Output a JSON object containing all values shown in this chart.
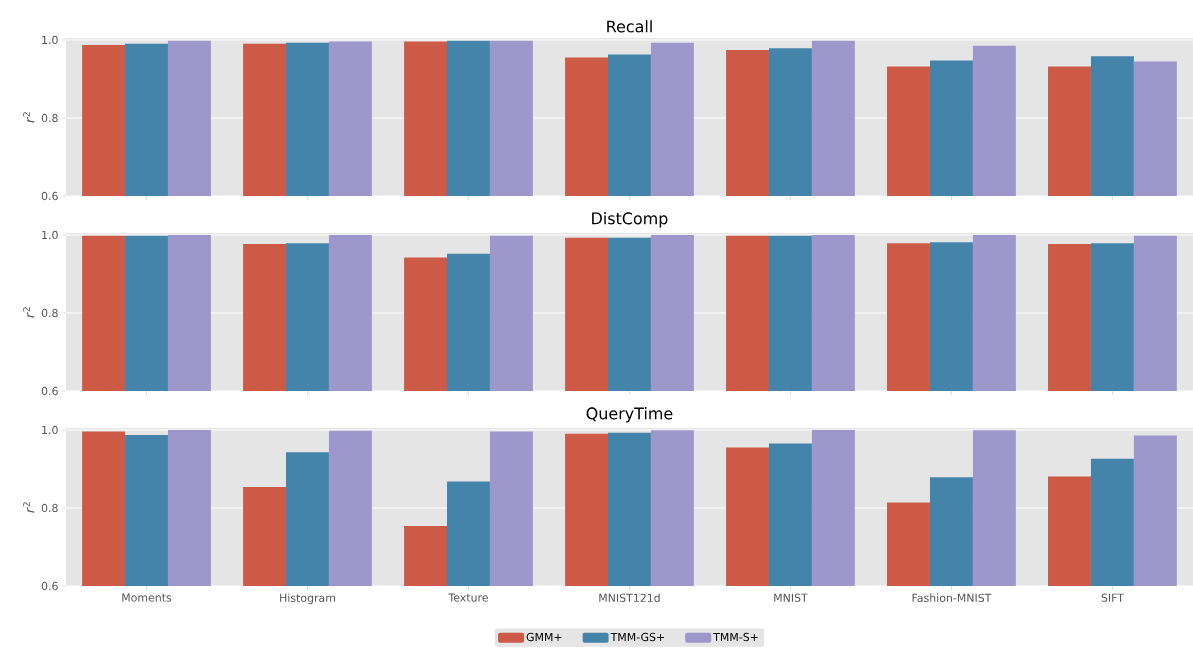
{
  "chart_data": [
    {
      "type": "bar",
      "title": "Recall",
      "ylabel": "*r*$^{2}$",
      "categories": [
        null,
        null,
        null,
        null,
        null,
        null,
        null
      ],
      "ylim": [
        0.6,
        1.005
      ],
      "yticks": [
        {
          "value": 0.6,
          "label": "0.6"
        },
        {
          "value": 0.8,
          "label": "0.8"
        },
        {
          "value": 1.0,
          "label": "1.0"
        }
      ],
      "grid": "y",
      "tick_labels": "y",
      "series": [
        {
          "color": "#cc5a47",
          "values": [
            0.987,
            0.99,
            0.996,
            0.955,
            0.974,
            0.932,
            0.932
          ]
        },
        {
          "color": "#4484ab",
          "values": [
            0.99,
            0.993,
            0.998,
            0.963,
            0.979,
            0.947,
            0.958
          ]
        },
        {
          "color": "#9d97cb",
          "values": [
            0.998,
            0.996,
            0.998,
            0.993,
            0.998,
            0.985,
            0.945
          ]
        }
      ]
    },
    {
      "type": "bar",
      "title": "DistComp",
      "ylabel": "*r*$^{2}$",
      "categories": [
        null,
        null,
        null,
        null,
        null,
        null,
        null
      ],
      "ylim": [
        0.6,
        1.005
      ],
      "yticks": [
        {
          "value": 0.6,
          "label": "0.6"
        },
        {
          "value": 0.8,
          "label": "0.8"
        },
        {
          "value": 1.0,
          "label": "1.0"
        }
      ],
      "grid": "y",
      "tick_labels": "y",
      "series": [
        {
          "color": "#cc5a47",
          "values": [
            0.998,
            0.977,
            0.942,
            0.993,
            0.998,
            0.979,
            0.977
          ]
        },
        {
          "color": "#4484ab",
          "values": [
            0.998,
            0.979,
            0.952,
            0.993,
            0.998,
            0.981,
            0.979
          ]
        },
        {
          "color": "#9d97cb",
          "values": [
            1.0,
            1.0,
            0.998,
            1.0,
            1.0,
            1.0,
            0.998
          ]
        }
      ]
    },
    {
      "type": "bar",
      "title": "QueryTime",
      "ylabel": "*r*$^{2}$",
      "categories": [
        "Moments",
        "Histogram",
        "Texture",
        "MNIST121d",
        "MNIST",
        "Fashion-MNIST",
        "SIFT"
      ],
      "ylim": [
        0.6,
        1.005
      ],
      "yticks": [
        {
          "value": 0.6,
          "label": "0.6"
        },
        {
          "value": 0.8,
          "label": "0.8"
        },
        {
          "value": 1.0,
          "label": "1.0"
        }
      ],
      "grid": "y",
      "legend": "bottom",
      "series": [
        {
          "name": "GMM+",
          "color": "#cc5a47",
          "values": [
            0.996,
            0.854,
            0.754,
            0.99,
            0.955,
            0.814,
            0.881
          ]
        },
        {
          "name": "TMM-GS+",
          "color": "#4484ab",
          "values": [
            0.987,
            0.943,
            0.868,
            0.993,
            0.965,
            0.879,
            0.926
          ]
        },
        {
          "name": "TMM-S+",
          "color": "#9d97cb",
          "values": [
            1.0,
            0.998,
            0.996,
            0.999,
            1.0,
            0.999,
            0.986
          ]
        }
      ]
    }
  ]
}
